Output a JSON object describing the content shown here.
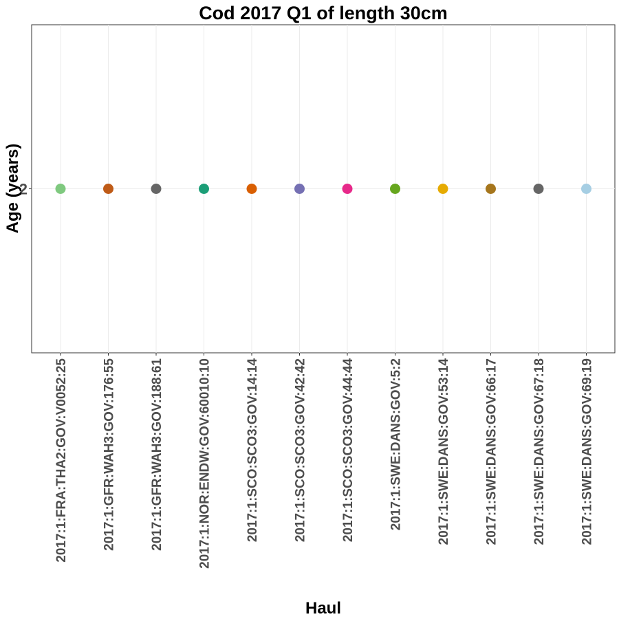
{
  "chart_data": {
    "type": "scatter",
    "title": "Cod 2017 Q1 of length 30cm",
    "xlabel": "Haul",
    "ylabel": "Age (years)",
    "ylim": [
      1,
      3
    ],
    "y_ticks": [
      2
    ],
    "grid": true,
    "legend": "none",
    "categories": [
      "2017:1:FRA:THA2:GOV:V0052:25",
      "2017:1:GFR:WAH3:GOV:176:55",
      "2017:1:GFR:WAH3:GOV:188:61",
      "2017:1:NOR:ENDW:GOV:60010:10",
      "2017:1:SCO:SCO3:GOV:14:14",
      "2017:1:SCO:SCO3:GOV:42:42",
      "2017:1:SCO:SCO3:GOV:44:44",
      "2017:1:SWE:DANS:GOV:5:2",
      "2017:1:SWE:DANS:GOV:53:14",
      "2017:1:SWE:DANS:GOV:66:17",
      "2017:1:SWE:DANS:GOV:67:18",
      "2017:1:SWE:DANS:GOV:69:19"
    ],
    "values": [
      2,
      2,
      2,
      2,
      2,
      2,
      2,
      2,
      2,
      2,
      2,
      2
    ],
    "colors": [
      "#7fc97f",
      "#bf5b17",
      "#666666",
      "#1b9e77",
      "#d95f02",
      "#7570b3",
      "#e7298a",
      "#66a61e",
      "#e6ab02",
      "#a6761d",
      "#666666",
      "#a6cee3"
    ]
  }
}
